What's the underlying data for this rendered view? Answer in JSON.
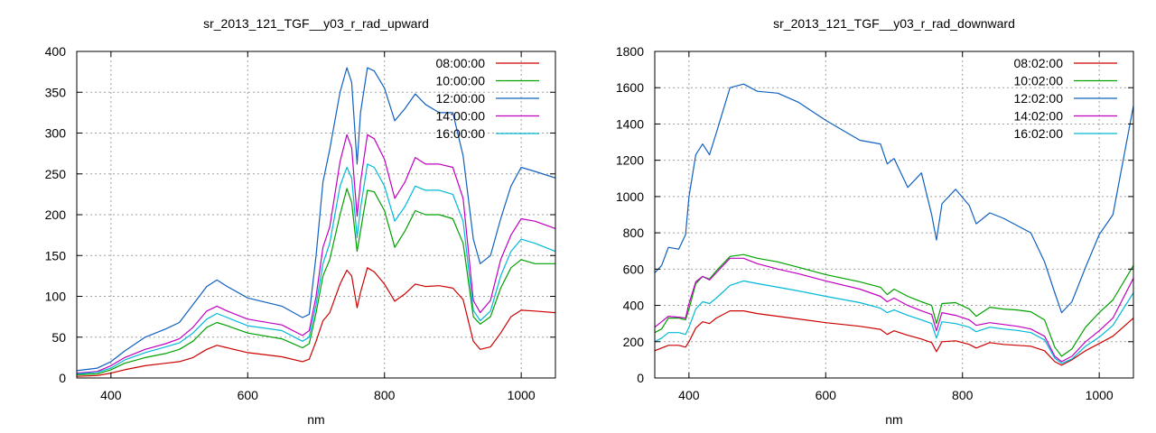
{
  "chart_data": [
    {
      "type": "line",
      "title": "sr_2013_121_TGF__y03_r_rad_upward",
      "xlabel": "nm",
      "ylabel": "",
      "xlim": [
        350,
        1050
      ],
      "ylim": [
        0,
        400
      ],
      "xticks": [
        400,
        600,
        800,
        1000
      ],
      "yticks": [
        0,
        50,
        100,
        150,
        200,
        250,
        300,
        350,
        400
      ],
      "grid": true,
      "legend_position": "top-right",
      "series": [
        {
          "name": "08:00:00",
          "color": "#cc0000",
          "x": [
            350,
            380,
            400,
            420,
            450,
            480,
            500,
            520,
            540,
            555,
            570,
            600,
            650,
            680,
            690,
            700,
            710,
            720,
            735,
            745,
            752,
            760,
            765,
            775,
            785,
            800,
            815,
            830,
            845,
            860,
            880,
            900,
            915,
            930,
            940,
            955,
            970,
            985,
            1000,
            1020,
            1050
          ],
          "y": [
            2,
            3,
            6,
            10,
            15,
            18,
            20,
            25,
            35,
            40,
            37,
            31,
            26,
            20,
            23,
            45,
            70,
            80,
            115,
            132,
            125,
            86,
            105,
            135,
            130,
            115,
            94,
            103,
            115,
            112,
            113,
            110,
            96,
            45,
            35,
            38,
            55,
            75,
            83,
            82,
            80
          ]
        },
        {
          "name": "10:00:00",
          "color": "#00a000",
          "x": [
            350,
            380,
            400,
            420,
            450,
            480,
            500,
            520,
            540,
            555,
            570,
            600,
            650,
            680,
            690,
            700,
            710,
            720,
            735,
            745,
            752,
            760,
            765,
            775,
            785,
            800,
            815,
            830,
            845,
            860,
            880,
            900,
            915,
            930,
            940,
            955,
            970,
            985,
            1000,
            1020,
            1050
          ],
          "y": [
            4,
            5,
            10,
            18,
            25,
            30,
            35,
            45,
            62,
            68,
            64,
            55,
            48,
            37,
            42,
            80,
            125,
            145,
            200,
            232,
            215,
            155,
            180,
            230,
            228,
            205,
            160,
            180,
            205,
            200,
            200,
            195,
            165,
            75,
            66,
            75,
            110,
            135,
            145,
            140,
            140
          ]
        },
        {
          "name": "12:00:00",
          "color": "#1060c0",
          "x": [
            350,
            380,
            400,
            420,
            450,
            480,
            500,
            520,
            540,
            555,
            570,
            600,
            650,
            680,
            690,
            700,
            710,
            720,
            735,
            745,
            752,
            760,
            765,
            775,
            785,
            800,
            815,
            830,
            845,
            860,
            880,
            900,
            915,
            930,
            940,
            955,
            970,
            985,
            1000,
            1020,
            1050
          ],
          "y": [
            9,
            12,
            20,
            33,
            50,
            60,
            68,
            90,
            112,
            120,
            112,
            98,
            88,
            74,
            78,
            150,
            240,
            280,
            350,
            380,
            362,
            262,
            325,
            380,
            376,
            355,
            315,
            330,
            348,
            335,
            325,
            325,
            272,
            170,
            140,
            150,
            195,
            235,
            258,
            253,
            245
          ]
        },
        {
          "name": "14:00:00",
          "color": "#c000c0",
          "x": [
            350,
            380,
            400,
            420,
            450,
            480,
            500,
            520,
            540,
            555,
            570,
            600,
            650,
            680,
            690,
            700,
            710,
            720,
            735,
            745,
            752,
            760,
            765,
            775,
            785,
            800,
            815,
            830,
            845,
            860,
            880,
            900,
            915,
            930,
            940,
            955,
            970,
            985,
            1000,
            1020,
            1050
          ],
          "y": [
            6,
            8,
            15,
            25,
            35,
            42,
            48,
            62,
            82,
            88,
            82,
            72,
            65,
            52,
            58,
            100,
            160,
            185,
            265,
            298,
            282,
            198,
            240,
            298,
            293,
            268,
            220,
            240,
            270,
            262,
            262,
            258,
            220,
            95,
            80,
            95,
            145,
            175,
            195,
            192,
            183
          ]
        },
        {
          "name": "16:00:00",
          "color": "#00b8d8",
          "x": [
            350,
            380,
            400,
            420,
            450,
            480,
            500,
            520,
            540,
            555,
            570,
            600,
            650,
            680,
            690,
            700,
            710,
            720,
            735,
            745,
            752,
            760,
            765,
            775,
            785,
            800,
            815,
            830,
            845,
            860,
            880,
            900,
            915,
            930,
            940,
            955,
            970,
            985,
            1000,
            1020,
            1050
          ],
          "y": [
            5,
            7,
            12,
            22,
            31,
            38,
            43,
            55,
            72,
            79,
            74,
            64,
            58,
            45,
            50,
            90,
            140,
            165,
            235,
            258,
            245,
            172,
            208,
            262,
            258,
            235,
            192,
            210,
            235,
            230,
            230,
            225,
            192,
            83,
            70,
            82,
            125,
            155,
            170,
            165,
            155
          ]
        }
      ]
    },
    {
      "type": "line",
      "title": "sr_2013_121_TGF__y03_r_rad_downward",
      "xlabel": "nm",
      "ylabel": "",
      "xlim": [
        350,
        1050
      ],
      "ylim": [
        0,
        1800
      ],
      "xticks": [
        400,
        600,
        800,
        1000
      ],
      "yticks": [
        0,
        200,
        400,
        600,
        800,
        1000,
        1200,
        1400,
        1600,
        1800
      ],
      "grid": true,
      "legend_position": "top-right",
      "series": [
        {
          "name": "08:02:00",
          "color": "#cc0000",
          "x": [
            350,
            360,
            370,
            385,
            395,
            400,
            410,
            420,
            430,
            440,
            460,
            480,
            500,
            530,
            560,
            600,
            650,
            680,
            690,
            700,
            720,
            740,
            755,
            762,
            770,
            790,
            810,
            820,
            840,
            860,
            880,
            900,
            920,
            935,
            945,
            960,
            980,
            1000,
            1020,
            1050
          ],
          "y": [
            150,
            165,
            180,
            180,
            170,
            200,
            275,
            310,
            300,
            330,
            370,
            370,
            355,
            340,
            325,
            305,
            285,
            268,
            240,
            260,
            235,
            215,
            195,
            145,
            200,
            205,
            185,
            165,
            195,
            185,
            180,
            175,
            150,
            90,
            70,
            100,
            150,
            190,
            230,
            330
          ]
        },
        {
          "name": "10:02:00",
          "color": "#00a000",
          "x": [
            350,
            360,
            370,
            385,
            395,
            400,
            410,
            420,
            430,
            440,
            460,
            480,
            500,
            530,
            560,
            600,
            650,
            680,
            690,
            700,
            720,
            740,
            755,
            762,
            770,
            790,
            810,
            820,
            840,
            860,
            880,
            900,
            920,
            935,
            945,
            960,
            980,
            1000,
            1020,
            1050
          ],
          "y": [
            250,
            270,
            330,
            330,
            320,
            380,
            520,
            560,
            545,
            590,
            670,
            680,
            660,
            640,
            610,
            570,
            530,
            500,
            460,
            490,
            450,
            420,
            400,
            300,
            410,
            415,
            380,
            340,
            390,
            380,
            375,
            365,
            320,
            170,
            120,
            160,
            280,
            360,
            430,
            620
          ]
        },
        {
          "name": "12:02:00",
          "color": "#1060c0",
          "x": [
            350,
            360,
            370,
            385,
            395,
            400,
            410,
            420,
            430,
            440,
            460,
            480,
            500,
            530,
            560,
            600,
            650,
            680,
            690,
            700,
            720,
            740,
            755,
            762,
            770,
            790,
            810,
            820,
            840,
            860,
            880,
            900,
            920,
            935,
            945,
            960,
            980,
            1000,
            1020,
            1050
          ],
          "y": [
            580,
            620,
            720,
            710,
            790,
            1000,
            1230,
            1290,
            1230,
            1350,
            1600,
            1620,
            1580,
            1570,
            1520,
            1420,
            1310,
            1290,
            1180,
            1210,
            1050,
            1130,
            900,
            760,
            960,
            1040,
            950,
            850,
            910,
            880,
            840,
            800,
            640,
            470,
            360,
            420,
            610,
            790,
            900,
            1500
          ]
        },
        {
          "name": "14:02:00",
          "color": "#c000c0",
          "x": [
            350,
            360,
            370,
            385,
            395,
            400,
            410,
            420,
            430,
            440,
            460,
            480,
            500,
            530,
            560,
            600,
            650,
            680,
            690,
            700,
            720,
            740,
            755,
            762,
            770,
            790,
            810,
            820,
            840,
            860,
            880,
            900,
            920,
            935,
            945,
            960,
            980,
            1000,
            1020,
            1050
          ],
          "y": [
            280,
            310,
            340,
            335,
            330,
            410,
            530,
            560,
            540,
            580,
            660,
            660,
            630,
            600,
            575,
            535,
            490,
            450,
            420,
            440,
            400,
            370,
            350,
            260,
            360,
            345,
            320,
            290,
            305,
            295,
            285,
            270,
            230,
            120,
            90,
            120,
            200,
            260,
            330,
            550
          ]
        },
        {
          "name": "16:02:00",
          "color": "#00b8d8",
          "x": [
            350,
            360,
            370,
            385,
            395,
            400,
            410,
            420,
            430,
            440,
            460,
            480,
            500,
            530,
            560,
            600,
            650,
            680,
            690,
            700,
            720,
            740,
            755,
            762,
            770,
            790,
            810,
            820,
            840,
            860,
            880,
            900,
            920,
            935,
            945,
            960,
            980,
            1000,
            1020,
            1050
          ],
          "y": [
            200,
            220,
            250,
            250,
            240,
            280,
            380,
            420,
            410,
            440,
            510,
            535,
            520,
            500,
            480,
            450,
            415,
            385,
            360,
            375,
            345,
            320,
            300,
            220,
            310,
            300,
            280,
            255,
            280,
            270,
            262,
            250,
            210,
            110,
            80,
            105,
            175,
            225,
            290,
            470
          ]
        }
      ]
    }
  ]
}
